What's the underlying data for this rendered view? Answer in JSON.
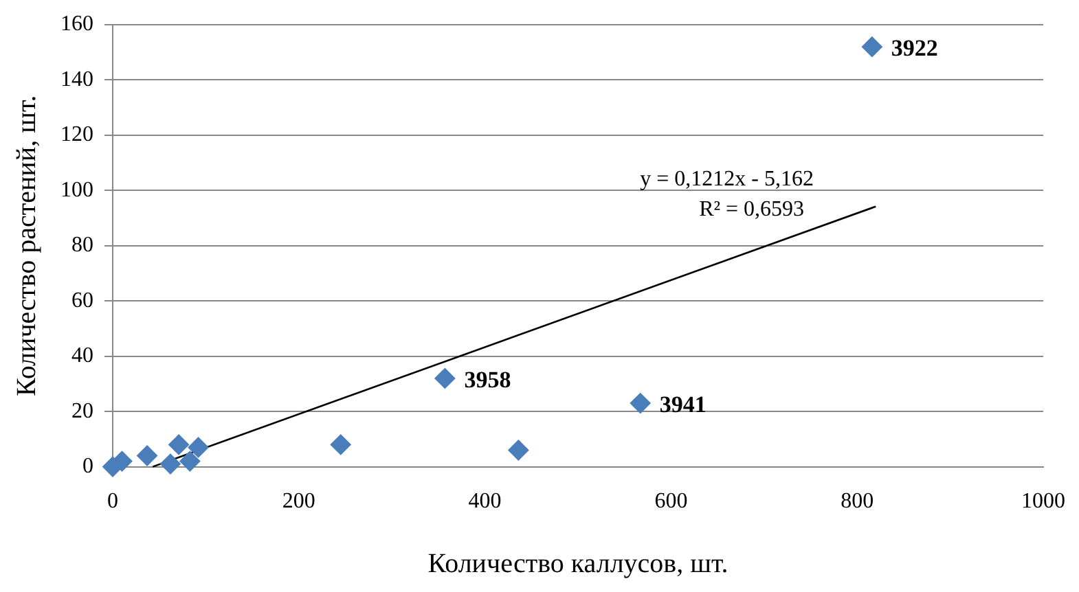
{
  "chart_data": {
    "type": "scatter",
    "xlabel": "Количество каллусов, шт.",
    "ylabel": "Количество растений, шт.",
    "xlim": [
      0,
      1000
    ],
    "xticks": [
      0,
      200,
      400,
      600,
      800,
      1000
    ],
    "ylim": [
      0,
      160
    ],
    "yticks": [
      0,
      20,
      40,
      60,
      80,
      100,
      120,
      140,
      160
    ],
    "grid": "y",
    "legend": false,
    "series": [
      {
        "type": "scatter",
        "marker": "diamond",
        "color": "#4a7ebb",
        "x": [
          0,
          10,
          37,
          62,
          71,
          83,
          92,
          245,
          436,
          357,
          567,
          816
        ],
        "values": [
          0,
          2,
          4,
          1,
          8,
          2,
          7,
          8,
          6,
          32,
          23,
          152
        ]
      },
      {
        "type": "line",
        "color": "#000000",
        "x": [
          43,
          820
        ],
        "values": [
          0,
          94.2
        ]
      }
    ],
    "annotations": [
      {
        "text": "3922",
        "x": 816,
        "y": 152
      },
      {
        "text": "3958",
        "x": 357,
        "y": 32
      },
      {
        "text": "3941",
        "x": 567,
        "y": 23
      },
      "y = 0,1212x - 5,162",
      "R² = 0,6593"
    ]
  }
}
